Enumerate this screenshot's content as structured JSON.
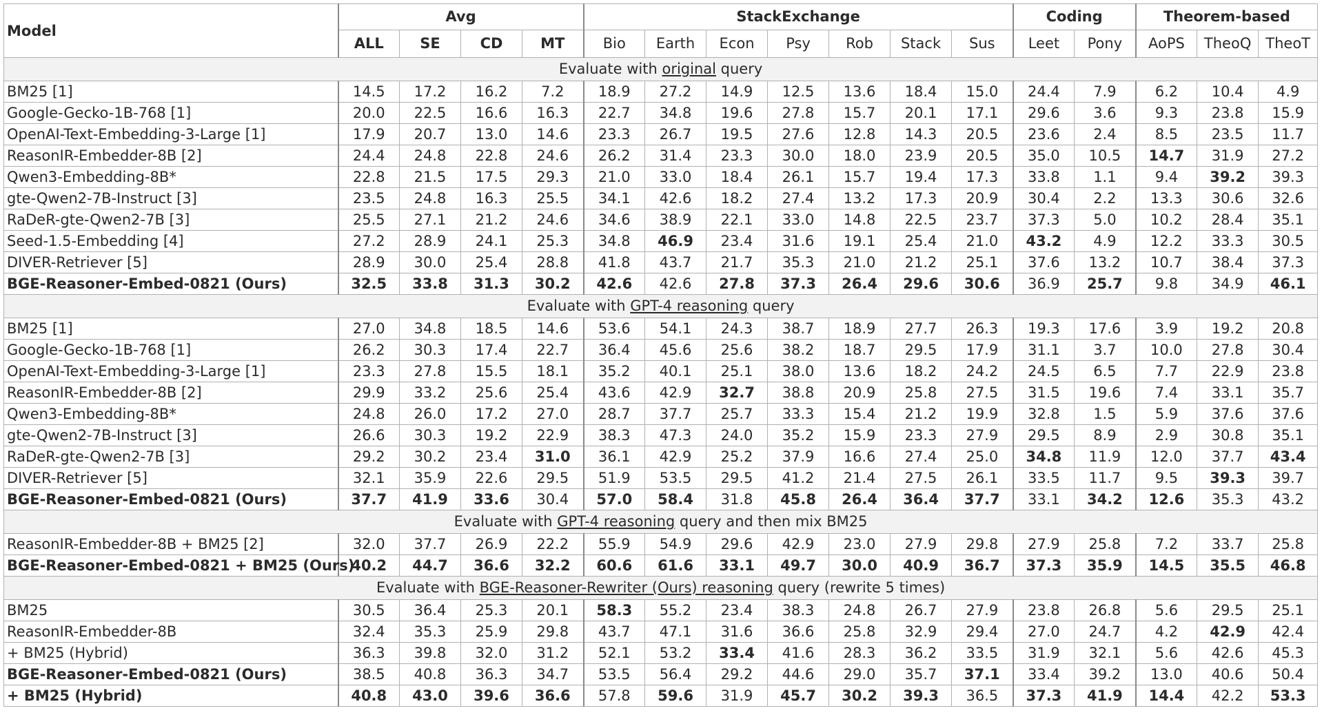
{
  "header": {
    "model_label": "Model",
    "groups": [
      {
        "label": "Avg",
        "columns": [
          "ALL",
          "SE",
          "CD",
          "MT"
        ]
      },
      {
        "label": "StackExchange",
        "columns": [
          "Bio",
          "Earth",
          "Econ",
          "Psy",
          "Rob",
          "Stack",
          "Sus"
        ]
      },
      {
        "label": "Coding",
        "columns": [
          "Leet",
          "Pony"
        ]
      },
      {
        "label": "Theorem-based",
        "columns": [
          "AoPS",
          "TheoQ",
          "TheoT"
        ]
      }
    ]
  },
  "sections": [
    {
      "title_before": "Evaluate with ",
      "title_underlined": "original",
      "title_after": " query",
      "rows": [
        {
          "model": "BM25 [1]",
          "values": [
            "14.5",
            "17.2",
            "16.2",
            "7.2",
            "18.9",
            "27.2",
            "14.9",
            "12.5",
            "13.6",
            "18.4",
            "15.0",
            "24.4",
            "7.9",
            "6.2",
            "10.4",
            "4.9"
          ],
          "bold": []
        },
        {
          "model": "Google-Gecko-1B-768 [1]",
          "values": [
            "20.0",
            "22.5",
            "16.6",
            "16.3",
            "22.7",
            "34.8",
            "19.6",
            "27.8",
            "15.7",
            "20.1",
            "17.1",
            "29.6",
            "3.6",
            "9.3",
            "23.8",
            "15.9"
          ],
          "bold": []
        },
        {
          "model": "OpenAI-Text-Embedding-3-Large [1]",
          "values": [
            "17.9",
            "20.7",
            "13.0",
            "14.6",
            "23.3",
            "26.7",
            "19.5",
            "27.6",
            "12.8",
            "14.3",
            "20.5",
            "23.6",
            "2.4",
            "8.5",
            "23.5",
            "11.7"
          ],
          "bold": []
        },
        {
          "model": "ReasonIR-Embedder-8B [2]",
          "values": [
            "24.4",
            "24.8",
            "22.8",
            "24.6",
            "26.2",
            "31.4",
            "23.3",
            "30.0",
            "18.0",
            "23.9",
            "20.5",
            "35.0",
            "10.5",
            "14.7",
            "31.9",
            "27.2"
          ],
          "bold": [
            13
          ]
        },
        {
          "model": "Qwen3-Embedding-8B*",
          "values": [
            "22.8",
            "21.5",
            "17.5",
            "29.3",
            "21.0",
            "33.0",
            "18.4",
            "26.1",
            "15.7",
            "19.4",
            "17.3",
            "33.8",
            "1.1",
            "9.4",
            "39.2",
            "39.3"
          ],
          "bold": [
            14
          ]
        },
        {
          "model": "gte-Qwen2-7B-Instruct [3]",
          "values": [
            "23.5",
            "24.8",
            "16.3",
            "25.5",
            "34.1",
            "42.6",
            "18.2",
            "27.4",
            "13.2",
            "17.3",
            "20.9",
            "30.4",
            "2.2",
            "13.3",
            "30.6",
            "32.6"
          ],
          "bold": []
        },
        {
          "model": "RaDeR-gte-Qwen2-7B [3]",
          "values": [
            "25.5",
            "27.1",
            "21.2",
            "24.6",
            "34.6",
            "38.9",
            "22.1",
            "33.0",
            "14.8",
            "22.5",
            "23.7",
            "37.3",
            "5.0",
            "10.2",
            "28.4",
            "35.1"
          ],
          "bold": []
        },
        {
          "model": "Seed-1.5-Embedding [4]",
          "values": [
            "27.2",
            "28.9",
            "24.1",
            "25.3",
            "34.8",
            "46.9",
            "23.4",
            "31.6",
            "19.1",
            "25.4",
            "21.0",
            "43.2",
            "4.9",
            "12.2",
            "33.3",
            "30.5"
          ],
          "bold": [
            5,
            11
          ]
        },
        {
          "model": "DIVER-Retriever [5]",
          "values": [
            "28.9",
            "30.0",
            "25.4",
            "28.8",
            "41.8",
            "43.7",
            "21.7",
            "35.3",
            "21.0",
            "21.2",
            "25.1",
            "37.6",
            "13.2",
            "10.7",
            "38.4",
            "37.3"
          ],
          "bold": []
        },
        {
          "model": "BGE-Reasoner-Embed-0821 (Ours)",
          "values": [
            "32.5",
            "33.8",
            "31.3",
            "30.2",
            "42.6",
            "42.6",
            "27.8",
            "37.3",
            "26.4",
            "29.6",
            "30.6",
            "36.9",
            "25.7",
            "9.8",
            "34.9",
            "46.1"
          ],
          "bold": [
            0,
            1,
            2,
            3,
            4,
            6,
            7,
            8,
            9,
            10,
            12,
            15
          ],
          "ours": true
        }
      ]
    },
    {
      "title_before": "Evaluate with ",
      "title_underlined": "GPT-4 reasoning",
      "title_after": " query",
      "rows": [
        {
          "model": "BM25 [1]",
          "values": [
            "27.0",
            "34.8",
            "18.5",
            "14.6",
            "53.6",
            "54.1",
            "24.3",
            "38.7",
            "18.9",
            "27.7",
            "26.3",
            "19.3",
            "17.6",
            "3.9",
            "19.2",
            "20.8"
          ],
          "bold": []
        },
        {
          "model": "Google-Gecko-1B-768 [1]",
          "values": [
            "26.2",
            "30.3",
            "17.4",
            "22.7",
            "36.4",
            "45.6",
            "25.6",
            "38.2",
            "18.7",
            "29.5",
            "17.9",
            "31.1",
            "3.7",
            "10.0",
            "27.8",
            "30.4"
          ],
          "bold": []
        },
        {
          "model": "OpenAI-Text-Embedding-3-Large [1]",
          "values": [
            "23.3",
            "27.8",
            "15.5",
            "18.1",
            "35.2",
            "40.1",
            "25.1",
            "38.0",
            "13.6",
            "18.2",
            "24.2",
            "24.5",
            "6.5",
            "7.7",
            "22.9",
            "23.8"
          ],
          "bold": []
        },
        {
          "model": "ReasonIR-Embedder-8B [2]",
          "values": [
            "29.9",
            "33.2",
            "25.6",
            "25.4",
            "43.6",
            "42.9",
            "32.7",
            "38.8",
            "20.9",
            "25.8",
            "27.5",
            "31.5",
            "19.6",
            "7.4",
            "33.1",
            "35.7"
          ],
          "bold": [
            6
          ]
        },
        {
          "model": "Qwen3-Embedding-8B*",
          "values": [
            "24.8",
            "26.0",
            "17.2",
            "27.0",
            "28.7",
            "37.7",
            "25.7",
            "33.3",
            "15.4",
            "21.2",
            "19.9",
            "32.8",
            "1.5",
            "5.9",
            "37.6",
            "37.6"
          ],
          "bold": []
        },
        {
          "model": "gte-Qwen2-7B-Instruct [3]",
          "values": [
            "26.6",
            "30.3",
            "19.2",
            "22.9",
            "38.3",
            "47.3",
            "24.0",
            "35.2",
            "15.9",
            "23.3",
            "27.9",
            "29.5",
            "8.9",
            "2.9",
            "30.8",
            "35.1"
          ],
          "bold": []
        },
        {
          "model": "RaDeR-gte-Qwen2-7B [3]",
          "values": [
            "29.2",
            "30.2",
            "23.4",
            "31.0",
            "36.1",
            "42.9",
            "25.2",
            "37.9",
            "16.6",
            "27.4",
            "25.0",
            "34.8",
            "11.9",
            "12.0",
            "37.7",
            "43.4"
          ],
          "bold": [
            3,
            11,
            15
          ]
        },
        {
          "model": "DIVER-Retriever [5]",
          "values": [
            "32.1",
            "35.9",
            "22.6",
            "29.5",
            "51.9",
            "53.5",
            "29.5",
            "41.2",
            "21.4",
            "27.5",
            "26.1",
            "33.5",
            "11.7",
            "9.5",
            "39.3",
            "39.7"
          ],
          "bold": [
            14
          ]
        },
        {
          "model": "BGE-Reasoner-Embed-0821 (Ours)",
          "values": [
            "37.7",
            "41.9",
            "33.6",
            "30.4",
            "57.0",
            "58.4",
            "31.8",
            "45.8",
            "26.4",
            "36.4",
            "37.7",
            "33.1",
            "34.2",
            "12.6",
            "35.3",
            "43.2"
          ],
          "bold": [
            0,
            1,
            2,
            4,
            5,
            7,
            8,
            9,
            10,
            12,
            13
          ],
          "ours": true
        }
      ]
    },
    {
      "title_before": "Evaluate with ",
      "title_underlined": "GPT-4 reasoning",
      "title_after": " query and then mix BM25",
      "rows": [
        {
          "model": "ReasonIR-Embedder-8B + BM25 [2]",
          "values": [
            "32.0",
            "37.7",
            "26.9",
            "22.2",
            "55.9",
            "54.9",
            "29.6",
            "42.9",
            "23.0",
            "27.9",
            "29.8",
            "27.9",
            "25.8",
            "7.2",
            "33.7",
            "25.8"
          ],
          "bold": []
        },
        {
          "model": "BGE-Reasoner-Embed-0821 + BM25 (Ours)",
          "values": [
            "40.2",
            "44.7",
            "36.6",
            "32.2",
            "60.6",
            "61.6",
            "33.1",
            "49.7",
            "30.0",
            "40.9",
            "36.7",
            "37.3",
            "35.9",
            "14.5",
            "35.5",
            "46.8"
          ],
          "bold": [
            0,
            1,
            2,
            3,
            4,
            5,
            6,
            7,
            8,
            9,
            10,
            11,
            12,
            13,
            14,
            15
          ],
          "ours": true
        }
      ]
    },
    {
      "title_before": "Evaluate with ",
      "title_underlined": "BGE-Reasoner-Rewriter (Ours) reasoning",
      "title_after": " query (rewrite 5 times)",
      "rows": [
        {
          "model": "BM25",
          "values": [
            "30.5",
            "36.4",
            "25.3",
            "20.1",
            "58.3",
            "55.2",
            "23.4",
            "38.3",
            "24.8",
            "26.7",
            "27.9",
            "23.8",
            "26.8",
            "5.6",
            "29.5",
            "25.1"
          ],
          "bold": [
            4
          ]
        },
        {
          "model": "ReasonIR-Embedder-8B",
          "values": [
            "32.4",
            "35.3",
            "25.9",
            "29.8",
            "43.7",
            "47.1",
            "31.6",
            "36.6",
            "25.8",
            "32.9",
            "29.4",
            "27.0",
            "24.7",
            "4.2",
            "42.9",
            "42.4"
          ],
          "bold": [
            14
          ]
        },
        {
          "model": "+ BM25 (Hybrid)",
          "values": [
            "36.3",
            "39.8",
            "32.0",
            "31.2",
            "52.1",
            "53.2",
            "33.4",
            "41.6",
            "28.3",
            "36.2",
            "33.5",
            "31.9",
            "32.1",
            "5.6",
            "42.6",
            "45.3"
          ],
          "bold": [
            6
          ],
          "indent": true
        },
        {
          "model": "BGE-Reasoner-Embed-0821 (Ours)",
          "values": [
            "38.5",
            "40.8",
            "36.3",
            "34.7",
            "53.5",
            "56.4",
            "29.2",
            "44.6",
            "29.0",
            "35.7",
            "37.1",
            "33.4",
            "39.2",
            "13.0",
            "40.6",
            "50.4"
          ],
          "bold": [
            10
          ],
          "ours": true
        },
        {
          "model": "+ BM25 (Hybrid)",
          "values": [
            "40.8",
            "43.0",
            "39.6",
            "36.6",
            "57.8",
            "59.6",
            "31.9",
            "45.7",
            "30.2",
            "39.3",
            "36.5",
            "37.3",
            "41.9",
            "14.4",
            "42.2",
            "53.3"
          ],
          "bold": [
            0,
            1,
            2,
            3,
            5,
            7,
            8,
            9,
            11,
            12,
            13,
            15
          ],
          "ours": true,
          "indent": true
        }
      ]
    }
  ]
}
